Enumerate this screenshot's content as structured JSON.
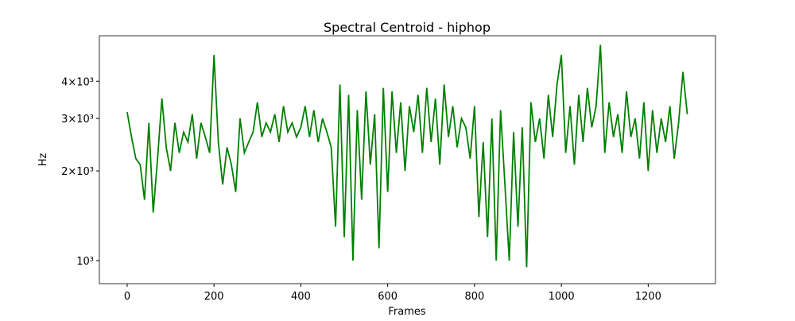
{
  "chart_data": {
    "type": "line",
    "title": "Spectral Centroid - hiphop",
    "xlabel": "Frames",
    "ylabel": "Hz",
    "yscale": "log",
    "x": [
      0,
      10,
      20,
      30,
      40,
      50,
      60,
      70,
      80,
      90,
      100,
      110,
      120,
      130,
      140,
      150,
      160,
      170,
      180,
      190,
      200,
      210,
      220,
      230,
      240,
      250,
      260,
      270,
      280,
      290,
      300,
      310,
      320,
      330,
      340,
      350,
      360,
      370,
      380,
      390,
      400,
      410,
      420,
      430,
      440,
      450,
      460,
      470,
      480,
      490,
      500,
      510,
      520,
      530,
      540,
      550,
      560,
      570,
      580,
      590,
      600,
      610,
      620,
      630,
      640,
      650,
      660,
      670,
      680,
      690,
      700,
      710,
      720,
      730,
      740,
      750,
      760,
      770,
      780,
      790,
      800,
      810,
      820,
      830,
      840,
      850,
      860,
      870,
      880,
      890,
      900,
      910,
      920,
      930,
      940,
      950,
      960,
      970,
      980,
      990,
      1000,
      1010,
      1020,
      1030,
      1040,
      1050,
      1060,
      1070,
      1080,
      1090,
      1100,
      1110,
      1120,
      1130,
      1140,
      1150,
      1160,
      1170,
      1180,
      1190,
      1200,
      1210,
      1220,
      1230,
      1240,
      1250,
      1260,
      1270,
      1280,
      1290
    ],
    "series": [
      {
        "name": "Spectral Centroid",
        "color": "#008000",
        "values": [
          3150,
          2600,
          2200,
          2100,
          1600,
          2900,
          1450,
          2200,
          3500,
          2400,
          2000,
          2900,
          2300,
          2700,
          2500,
          3100,
          2200,
          2900,
          2600,
          2300,
          4900,
          2500,
          1800,
          2400,
          2100,
          1700,
          3000,
          2300,
          2500,
          2700,
          3400,
          2600,
          2900,
          2700,
          3100,
          2500,
          3300,
          2700,
          2900,
          2600,
          2800,
          3300,
          2600,
          3200,
          2500,
          3000,
          2700,
          2400,
          1300,
          3900,
          1200,
          3600,
          1000,
          3200,
          1600,
          3700,
          2100,
          3100,
          1100,
          3800,
          1700,
          3700,
          2300,
          3400,
          2000,
          3300,
          2700,
          3600,
          2300,
          3800,
          2500,
          3500,
          2100,
          3900,
          2600,
          3300,
          2400,
          3000,
          2800,
          2200,
          3300,
          1400,
          2500,
          1200,
          3000,
          1000,
          3200,
          1800,
          1000,
          2700,
          1300,
          2800,
          950,
          3400,
          2500,
          3000,
          2200,
          3600,
          2600,
          3900,
          4900,
          2300,
          3300,
          2100,
          3600,
          2500,
          3800,
          2800,
          3300,
          5300,
          2300,
          3400,
          2600,
          3100,
          2300,
          3700,
          2600,
          3000,
          2200,
          3400,
          2000,
          3200,
          2300,
          3000,
          2500,
          3300,
          2200,
          2900,
          4300,
          3100
        ]
      }
    ],
    "xlim": [
      -64,
      1355
    ],
    "xticks": [
      0,
      200,
      400,
      600,
      800,
      1000,
      1200
    ],
    "ylim": [
      837,
      5685
    ],
    "yticks": [
      {
        "value": 1000,
        "label": "10³"
      },
      {
        "value": 2000,
        "label": "2×10³"
      },
      {
        "value": 3000,
        "label": "3×10³"
      },
      {
        "value": 4000,
        "label": "4×10³"
      }
    ]
  }
}
